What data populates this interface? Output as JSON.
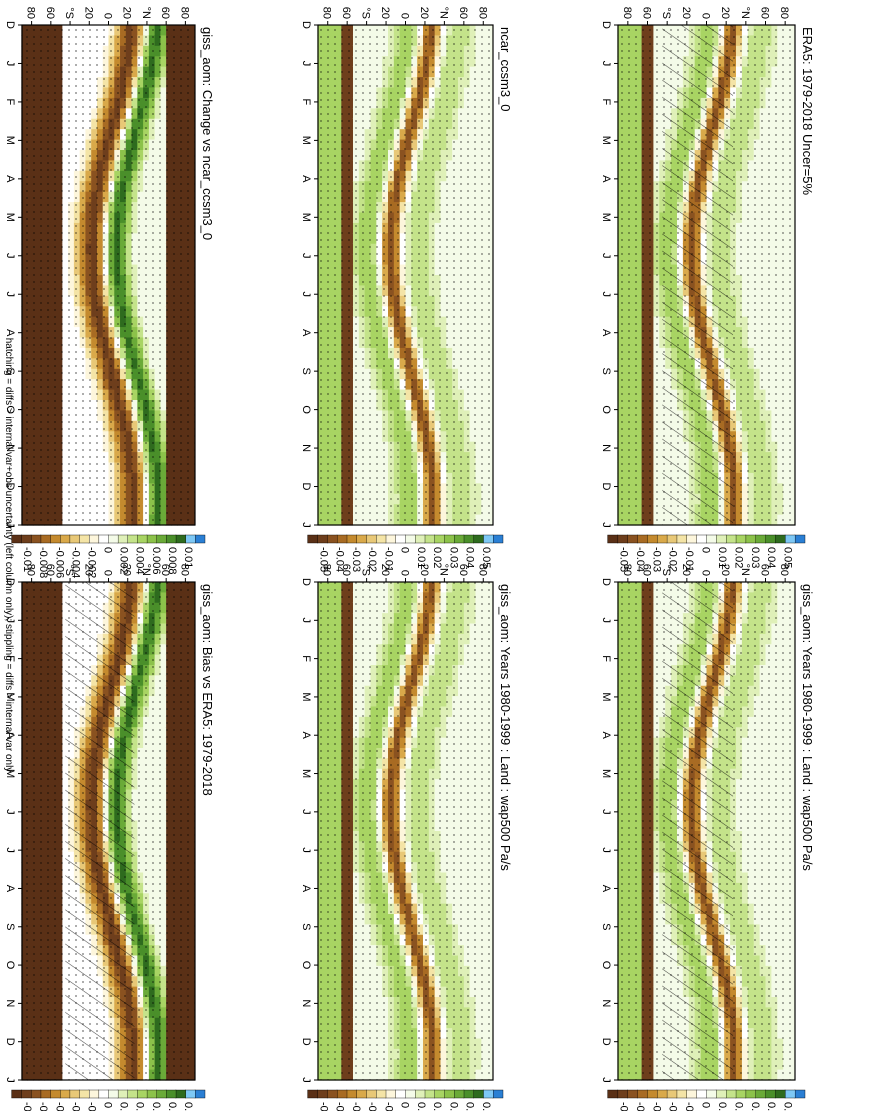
{
  "footnote": "hatching = diffs > internal var+obs uncertainty (left column only); stippling = diffs > internal var only",
  "axis": {
    "months": [
      "D",
      "J",
      "F",
      "M",
      "A",
      "M",
      "J",
      "J",
      "A",
      "S",
      "O",
      "N",
      "D",
      "J"
    ],
    "lat_ticks": [
      "80",
      "60",
      "°N",
      "20",
      "0",
      "20",
      "°S",
      "60",
      "80"
    ]
  },
  "colorbar_main": [
    "0.05",
    "0.04",
    "0.03",
    "0.02",
    "0.01",
    "0",
    "-0.01",
    "-0.02",
    "-0.03",
    "-0.04",
    "-0.05"
  ],
  "colorbar_diff": [
    "0.01",
    "0.008",
    "0.006",
    "0.004",
    "0.002",
    "0",
    "-0.002",
    "-0.004",
    "-0.006",
    "-0.008",
    "-0.01"
  ],
  "colors": {
    "palette": [
      "#2a7fd4",
      "#7ec8f5",
      "#2e6b1e",
      "#4a8f2a",
      "#6aaa38",
      "#8cc24a",
      "#a8d463",
      "#c4e38a",
      "#dff0b8",
      "#f4fbe8",
      "#ffffff",
      "#fdf6dc",
      "#f4e4a6",
      "#e8c877",
      "#d9a94a",
      "#c48a2e",
      "#a86b23",
      "#8a5220",
      "#6e3e1c",
      "#5a3016"
    ]
  },
  "panels": [
    {
      "title": "giss_aom: Years 1980-1999 : Land : wap500 Pa/s",
      "kind": "main",
      "hatch": true
    },
    {
      "title": "giss_aom: Years 1980-1999 : Land : wap500 Pa/s",
      "kind": "main",
      "hatch": false
    },
    {
      "title": "ERA5: 1979-2018 Uncer=5%",
      "kind": "main",
      "hatch": true
    },
    {
      "title": "ncar_ccsm3_0",
      "kind": "main",
      "hatch": false
    },
    {
      "title": "giss_aom: Bias vs ERA5: 1979-2018",
      "kind": "diff",
      "hatch": true
    },
    {
      "title": "giss_aom: Change vs ncar_ccsm3_0",
      "kind": "diff",
      "hatch": false
    }
  ],
  "chart_data": [
    {
      "type": "heatmap",
      "title": "giss_aom: Years 1980-1999 : Land : wap500 Pa/s",
      "x": [
        "D",
        "J",
        "F",
        "M",
        "A",
        "M",
        "J",
        "J",
        "A",
        "S",
        "O",
        "N",
        "D",
        "J"
      ],
      "y": [
        "80",
        "60",
        "°N",
        "20",
        "0",
        "20",
        "°S",
        "60",
        "80"
      ],
      "zlim": [
        -0.05,
        0.05
      ]
    },
    {
      "type": "heatmap",
      "title": "giss_aom: Years 1980-1999 : Land : wap500 Pa/s",
      "x": [
        "D",
        "J",
        "F",
        "M",
        "A",
        "M",
        "J",
        "J",
        "A",
        "S",
        "O",
        "N",
        "D",
        "J"
      ],
      "y": [
        "80",
        "60",
        "°N",
        "20",
        "0",
        "20",
        "°S",
        "60",
        "80"
      ],
      "zlim": [
        -0.05,
        0.05
      ]
    },
    {
      "type": "heatmap",
      "title": "ERA5: 1979-2018 Uncer=5%",
      "x": [
        "D",
        "J",
        "F",
        "M",
        "A",
        "M",
        "J",
        "J",
        "A",
        "S",
        "O",
        "N",
        "D",
        "J"
      ],
      "y": [
        "80",
        "60",
        "°N",
        "20",
        "0",
        "20",
        "°S",
        "60",
        "80"
      ],
      "zlim": [
        -0.05,
        0.05
      ]
    },
    {
      "type": "heatmap",
      "title": "ncar_ccsm3_0",
      "x": [
        "D",
        "J",
        "F",
        "M",
        "A",
        "M",
        "J",
        "J",
        "A",
        "S",
        "O",
        "N",
        "D",
        "J"
      ],
      "y": [
        "80",
        "60",
        "°N",
        "20",
        "0",
        "20",
        "°S",
        "60",
        "80"
      ],
      "zlim": [
        -0.05,
        0.05
      ]
    },
    {
      "type": "heatmap",
      "title": "giss_aom: Bias vs ERA5: 1979-2018",
      "x": [
        "D",
        "J",
        "F",
        "M",
        "A",
        "M",
        "J",
        "J",
        "A",
        "S",
        "O",
        "N",
        "D",
        "J"
      ],
      "y": [
        "80",
        "60",
        "°N",
        "20",
        "0",
        "20",
        "°S",
        "60",
        "80"
      ],
      "zlim": [
        -0.01,
        0.01
      ]
    },
    {
      "type": "heatmap",
      "title": "giss_aom: Change vs ncar_ccsm3_0",
      "x": [
        "D",
        "J",
        "F",
        "M",
        "A",
        "M",
        "J",
        "J",
        "A",
        "S",
        "O",
        "N",
        "D",
        "J"
      ],
      "y": [
        "80",
        "60",
        "°N",
        "20",
        "0",
        "20",
        "°S",
        "60",
        "80"
      ],
      "zlim": [
        -0.01,
        0.01
      ]
    }
  ]
}
